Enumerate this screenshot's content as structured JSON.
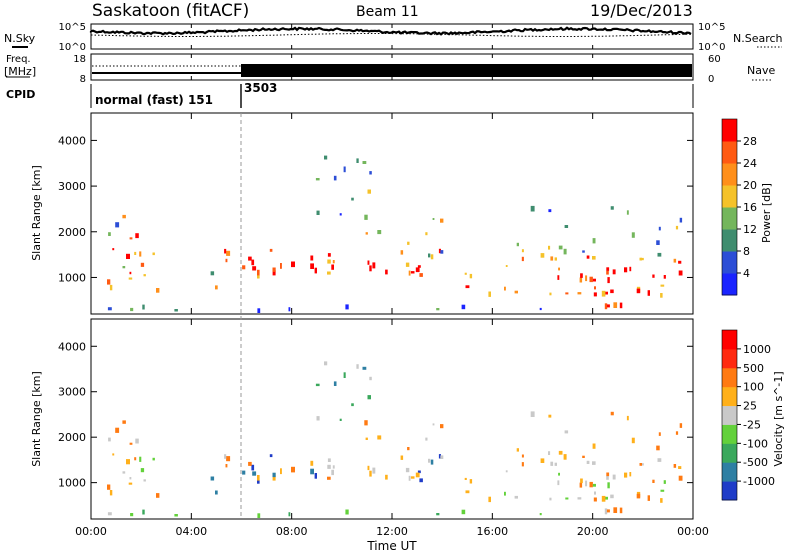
{
  "header": {
    "station": "Saskatoon (fitACF)",
    "beam": "Beam 11",
    "date": "19/Dec/2013"
  },
  "strip_labels": {
    "nsky": "N.Sky",
    "nsearch": "N.Search",
    "freq_line1": "Freq.",
    "freq_line2": "[MHz]",
    "nave": "Nave",
    "cpid": "CPID"
  },
  "strip_ticks": {
    "noise_top_left": "10^5",
    "noise_bottom_left": "10^0",
    "noise_top_right": "10^5",
    "noise_bottom_right": "10^0",
    "freq_top_left": "18",
    "freq_bottom_left": "8",
    "nave_top_right": "60",
    "nave_bottom_right": "0"
  },
  "cpid_segments": [
    {
      "label": "normal (fast) 151",
      "start": "00:00",
      "end": "06:00"
    },
    {
      "label": "3503",
      "start": "06:00",
      "end": "24:00"
    }
  ],
  "chart_data": [
    {
      "type": "heatmap",
      "panel": "power",
      "ylabel": "Slant Range [km]",
      "xlabel": "",
      "ylim": [
        200,
        4600
      ],
      "y_ticks": [
        "1000",
        "2000",
        "3000",
        "4000"
      ],
      "xlim_hours": [
        0,
        24
      ],
      "colorbar_label": "Power [dB]",
      "colorbar_ticks": [
        "4",
        "8",
        "12",
        "16",
        "20",
        "24",
        "28"
      ],
      "colorbar_colors": [
        "#1a24ff",
        "#2c4ed6",
        "#3f8d6f",
        "#74b65c",
        "#f5c22a",
        "#ff8f1a",
        "#ff5a12",
        "#ff0000"
      ],
      "colorbar_range": [
        0,
        30
      ]
    },
    {
      "type": "heatmap",
      "panel": "velocity",
      "ylabel": "Slant Range [km]",
      "xlabel": "Time UT",
      "ylim": [
        200,
        4600
      ],
      "y_ticks": [
        "1000",
        "2000",
        "3000",
        "4000"
      ],
      "x_ticks": [
        "00:00",
        "04:00",
        "08:00",
        "12:00",
        "16:00",
        "20:00",
        "00:00"
      ],
      "xlim_hours": [
        0,
        24
      ],
      "colorbar_label": "Velocity [m s^-1]",
      "colorbar_ticks": [
        "1000",
        "500",
        "100",
        "25",
        "-25",
        "-100",
        "-500",
        "-1000"
      ],
      "colorbar_colors": [
        "#1f3cc8",
        "#2e7fa3",
        "#3aa85c",
        "#63d13b",
        "#c9c9c9",
        "#ffb01a",
        "#ff7a12",
        "#ff2a10",
        "#ff0000"
      ]
    }
  ]
}
